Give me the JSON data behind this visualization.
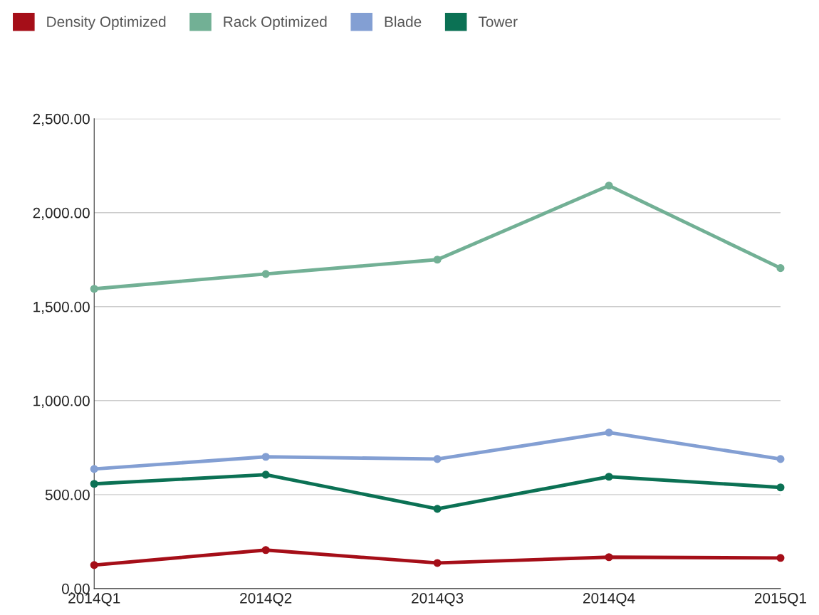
{
  "chart_data": {
    "type": "line",
    "categories": [
      "2014Q1",
      "2014Q2",
      "2014Q3",
      "2014Q4",
      "2015Q1"
    ],
    "series": [
      {
        "name": "Density Optimized",
        "color": "#a50e18",
        "values": [
          125,
          205,
          136,
          167,
          163
        ]
      },
      {
        "name": "Rack Optimized",
        "color": "#72b095",
        "values": [
          1595,
          1674,
          1750,
          2144,
          1705
        ]
      },
      {
        "name": "Blade",
        "color": "#839fd3",
        "values": [
          636,
          701,
          689,
          830,
          689
        ]
      },
      {
        "name": "Tower",
        "color": "#0b7154",
        "values": [
          557,
          606,
          424,
          595,
          538
        ]
      }
    ],
    "ylim": [
      0,
      2500
    ],
    "yticks": [
      {
        "value": 0,
        "label": "0.00"
      },
      {
        "value": 500,
        "label": "500.00"
      },
      {
        "value": 1000,
        "label": "1,000.00"
      },
      {
        "value": 1500,
        "label": "1,500.00"
      },
      {
        "value": 2000,
        "label": "2,000.00"
      },
      {
        "value": 2500,
        "label": "2,500.00"
      }
    ],
    "grid": "y",
    "legend": "top left",
    "marker": "circle",
    "line_style": "solid"
  }
}
